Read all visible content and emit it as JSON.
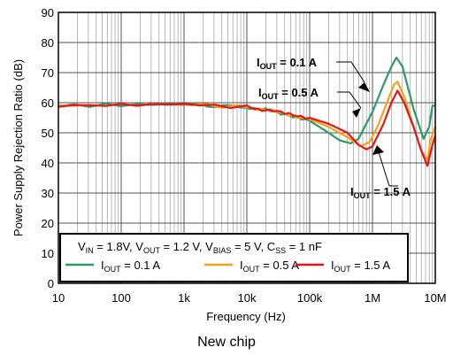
{
  "caption": "New chip",
  "chart_data": {
    "type": "line",
    "title": "",
    "xlabel": "Frequency (Hz)",
    "ylabel": "Power Supply Rejection Ratio (dB)",
    "xscale": "log",
    "xlim": [
      10,
      10000000
    ],
    "ylim": [
      0,
      90
    ],
    "grid": true,
    "x_ticks": [
      {
        "value": 10,
        "label": "10"
      },
      {
        "value": 100,
        "label": "100"
      },
      {
        "value": 1000,
        "label": "1k"
      },
      {
        "value": 10000,
        "label": "10k"
      },
      {
        "value": 100000,
        "label": "100k"
      },
      {
        "value": 1000000,
        "label": "1M"
      },
      {
        "value": 10000000,
        "label": "10M"
      }
    ],
    "y_ticks": [
      0,
      10,
      20,
      30,
      40,
      50,
      60,
      70,
      80,
      90
    ],
    "conditions": {
      "parts": [
        {
          "main": "V",
          "sub": "IN",
          "rest": " = 1.8V, "
        },
        {
          "main": "V",
          "sub": "OUT",
          "rest": " = 1.2 V, "
        },
        {
          "main": "V",
          "sub": "BIAS",
          "rest": " = 5 V, "
        },
        {
          "main": "C",
          "sub": "SS",
          "rest": " = 1 nF"
        }
      ]
    },
    "legend_position": "bottom",
    "series": [
      {
        "name": "IOUT = 0.1 A",
        "label_main": "I",
        "label_sub": "OUT",
        "label_rest": " = 0.1 A",
        "color": "#2e9a6a",
        "points": [
          [
            10,
            59
          ],
          [
            1000,
            59.5
          ],
          [
            10000,
            58.5
          ],
          [
            30000,
            57
          ],
          [
            100000,
            54
          ],
          [
            200000,
            50
          ],
          [
            300000,
            47.5
          ],
          [
            450000,
            46.5
          ],
          [
            600000,
            48
          ],
          [
            1000000,
            57
          ],
          [
            1500000,
            66
          ],
          [
            2000000,
            72
          ],
          [
            2400000,
            75
          ],
          [
            3000000,
            72
          ],
          [
            4500000,
            58
          ],
          [
            6500000,
            48
          ],
          [
            8000000,
            52
          ],
          [
            9000000,
            59
          ],
          [
            10000000,
            59
          ]
        ]
      },
      {
        "name": "IOUT = 0.5 A",
        "label_main": "I",
        "label_sub": "OUT",
        "label_rest": " = 0.5 A",
        "color": "#f5a21b",
        "points": [
          [
            10,
            59
          ],
          [
            1000,
            59.5
          ],
          [
            10000,
            58.5
          ],
          [
            30000,
            57
          ],
          [
            100000,
            54.5
          ],
          [
            200000,
            52
          ],
          [
            400000,
            48.5
          ],
          [
            650000,
            45.5
          ],
          [
            900000,
            47
          ],
          [
            1200000,
            52
          ],
          [
            1700000,
            60
          ],
          [
            2200000,
            66
          ],
          [
            2500000,
            67
          ],
          [
            3200000,
            62
          ],
          [
            4500000,
            52
          ],
          [
            6000000,
            44
          ],
          [
            7500000,
            41
          ],
          [
            8500000,
            48
          ],
          [
            10000000,
            52
          ]
        ]
      },
      {
        "name": "IOUT = 1.5 A",
        "label_main": "I",
        "label_sub": "OUT",
        "label_rest": " = 1.5 A",
        "color": "#e3171b",
        "points": [
          [
            10,
            59
          ],
          [
            1000,
            59.5
          ],
          [
            10000,
            58.5
          ],
          [
            30000,
            57
          ],
          [
            100000,
            55
          ],
          [
            200000,
            53
          ],
          [
            400000,
            50
          ],
          [
            600000,
            46
          ],
          [
            800000,
            44.5
          ],
          [
            1000000,
            45.5
          ],
          [
            1500000,
            53
          ],
          [
            2000000,
            60
          ],
          [
            2500000,
            64
          ],
          [
            3200000,
            60
          ],
          [
            4500000,
            52
          ],
          [
            6000000,
            44
          ],
          [
            7500000,
            39
          ],
          [
            9000000,
            46
          ],
          [
            10000000,
            49
          ]
        ]
      }
    ],
    "annotations": [
      {
        "id": "a01",
        "main": "I",
        "sub": "OUT",
        "rest": " = 0.1 A"
      },
      {
        "id": "a05",
        "main": "I",
        "sub": "OUT",
        "rest": " = 0.5 A"
      },
      {
        "id": "a15",
        "main": "I",
        "sub": "OUT",
        "rest": " = 1.5 A"
      }
    ]
  }
}
